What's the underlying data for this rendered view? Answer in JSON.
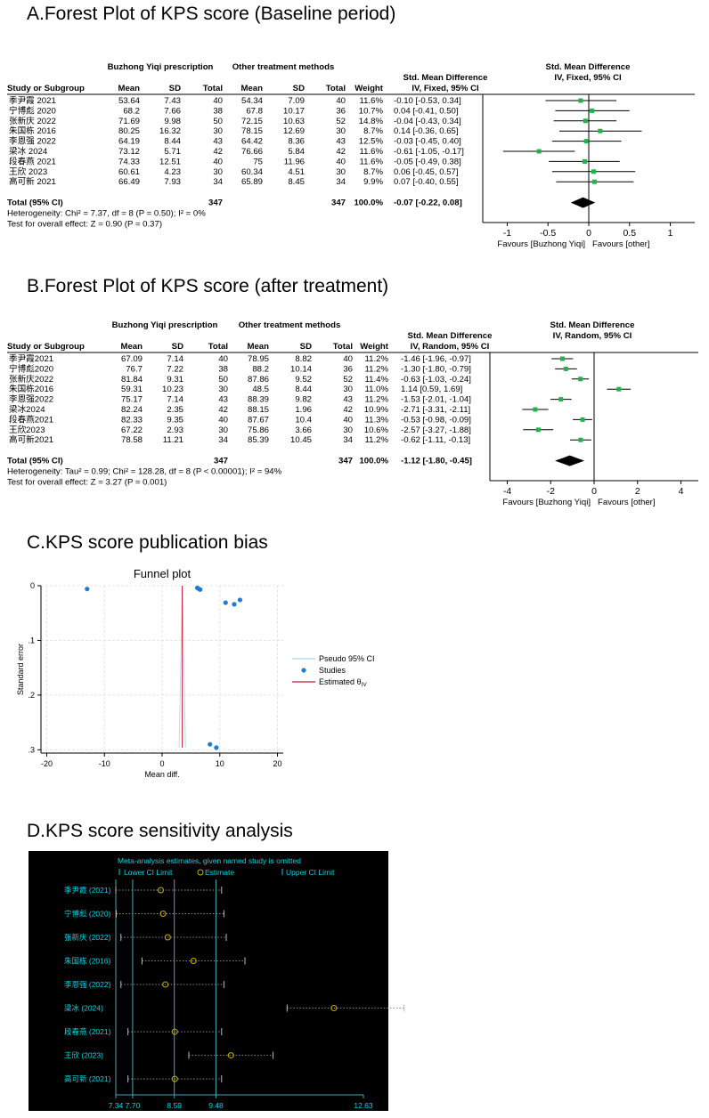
{
  "panels": {
    "A": {
      "title": "A.Forest Plot of KPS score (Baseline period)",
      "headers": {
        "group1": "Buzhong Yiqi prescription",
        "group2": "Other treatment methods",
        "effect": "Std. Mean Difference",
        "effect_method": "IV, Fixed, 95% CI",
        "plot_header": "Std. Mean Difference",
        "plot_method": "IV, Fixed, 95% CI",
        "study": "Study or Subgroup",
        "mean": "Mean",
        "sd": "SD",
        "total": "Total",
        "weight": "Weight"
      },
      "studies": [
        {
          "name": "季尹霞 2021",
          "m1": "53.64",
          "sd1": "7.43",
          "n1": "40",
          "m2": "54.34",
          "sd2": "7.09",
          "n2": "40",
          "weight": "11.6%",
          "ci": "-0.10 [-0.53, 0.34]"
        },
        {
          "name": "宁博彪 2020",
          "m1": "68.2",
          "sd1": "7.66",
          "n1": "38",
          "m2": "67.8",
          "sd2": "10.17",
          "n2": "36",
          "weight": "10.7%",
          "ci": "0.04 [-0.41, 0.50]"
        },
        {
          "name": "张新庆 2022",
          "m1": "71.69",
          "sd1": "9.98",
          "n1": "50",
          "m2": "72.15",
          "sd2": "10.63",
          "n2": "52",
          "weight": "14.8%",
          "ci": "-0.04 [-0.43, 0.34]"
        },
        {
          "name": "朱国栋 2016",
          "m1": "80.25",
          "sd1": "16.32",
          "n1": "30",
          "m2": "78.15",
          "sd2": "12.69",
          "n2": "30",
          "weight": "8.7%",
          "ci": "0.14 [-0.36, 0.65]"
        },
        {
          "name": "李恩强 2022",
          "m1": "64.19",
          "sd1": "8.44",
          "n1": "43",
          "m2": "64.42",
          "sd2": "8.36",
          "n2": "43",
          "weight": "12.5%",
          "ci": "-0.03 [-0.45, 0.40]"
        },
        {
          "name": "梁冰 2024",
          "m1": "73.12",
          "sd1": "5.71",
          "n1": "42",
          "m2": "76.66",
          "sd2": "5.84",
          "n2": "42",
          "weight": "11.6%",
          "ci": "-0.61 [-1.05, -0.17]"
        },
        {
          "name": "段春燕 2021",
          "m1": "74.33",
          "sd1": "12.51",
          "n1": "40",
          "m2": "75",
          "sd2": "11.96",
          "n2": "40",
          "weight": "11.6%",
          "ci": "-0.05 [-0.49, 0.38]"
        },
        {
          "name": "王欣 2023",
          "m1": "60.61",
          "sd1": "4.23",
          "n1": "30",
          "m2": "60.34",
          "sd2": "4.51",
          "n2": "30",
          "weight": "8.7%",
          "ci": "0.06 [-0.45, 0.57]"
        },
        {
          "name": "高可新 2021",
          "m1": "66.49",
          "sd1": "7.93",
          "n1": "34",
          "m2": "65.89",
          "sd2": "8.45",
          "n2": "34",
          "weight": "9.9%",
          "ci": "0.07 [-0.40, 0.55]"
        }
      ],
      "total": {
        "label": "Total (95% CI)",
        "n1": "347",
        "n2": "347",
        "weight": "100.0%",
        "ci": "-0.07 [-0.22, 0.08]"
      },
      "heterogeneity": "Heterogeneity: Chi² = 7.37, df = 8 (P = 0.50); I² = 0%",
      "overall": "Test for overall effect: Z = 0.90 (P = 0.37)",
      "favours_left": "Favours [Buzhong Yiqi]",
      "favours_right": "Favours [other]",
      "axis_ticks": [
        "-1",
        "-0.5",
        "0",
        "0.5",
        "1"
      ]
    },
    "B": {
      "title": "B.Forest Plot of KPS score (after treatment)",
      "headers": {
        "group1": "Buzhong Yiqi prescription",
        "group2": "Other treatment methods",
        "effect": "Std. Mean Difference",
        "effect_method": "IV, Random, 95% CI",
        "plot_header": "Std. Mean Difference",
        "plot_method": "IV, Random, 95% CI",
        "study": "Study or Subgroup",
        "mean": "Mean",
        "sd": "SD",
        "total": "Total",
        "weight": "Weight"
      },
      "studies": [
        {
          "name": "季尹霞2021",
          "m1": "67.09",
          "sd1": "7.14",
          "n1": "40",
          "m2": "78.95",
          "sd2": "8.82",
          "n2": "40",
          "weight": "11.2%",
          "ci": "-1.46 [-1.96, -0.97]"
        },
        {
          "name": "宁博彪2020",
          "m1": "76.7",
          "sd1": "7.22",
          "n1": "38",
          "m2": "88.2",
          "sd2": "10.14",
          "n2": "36",
          "weight": "11.2%",
          "ci": "-1.30 [-1.80, -0.79]"
        },
        {
          "name": "张新庆2022",
          "m1": "81.84",
          "sd1": "9.31",
          "n1": "50",
          "m2": "87.86",
          "sd2": "9.52",
          "n2": "52",
          "weight": "11.4%",
          "ci": "-0.63 [-1.03, -0.24]"
        },
        {
          "name": "朱国栋2016",
          "m1": "59.31",
          "sd1": "10.23",
          "n1": "30",
          "m2": "48.5",
          "sd2": "8.44",
          "n2": "30",
          "weight": "11.0%",
          "ci": "1.14 [0.59, 1.69]"
        },
        {
          "name": "李恩强2022",
          "m1": "75.17",
          "sd1": "7.14",
          "n1": "43",
          "m2": "88.39",
          "sd2": "9.82",
          "n2": "43",
          "weight": "11.2%",
          "ci": "-1.53 [-2.01, -1.04]"
        },
        {
          "name": "梁冰2024",
          "m1": "82.24",
          "sd1": "2.35",
          "n1": "42",
          "m2": "88.15",
          "sd2": "1.96",
          "n2": "42",
          "weight": "10.9%",
          "ci": "-2.71 [-3.31, -2.11]"
        },
        {
          "name": "段春燕2021",
          "m1": "82.33",
          "sd1": "9.35",
          "n1": "40",
          "m2": "87.67",
          "sd2": "10.4",
          "n2": "40",
          "weight": "11.3%",
          "ci": "-0.53 [-0.98, -0.09]"
        },
        {
          "name": "王欣2023",
          "m1": "67.22",
          "sd1": "2.93",
          "n1": "30",
          "m2": "75.86",
          "sd2": "3.66",
          "n2": "30",
          "weight": "10.6%",
          "ci": "-2.57 [-3.27, -1.88]"
        },
        {
          "name": "高可新2021",
          "m1": "78.58",
          "sd1": "11.21",
          "n1": "34",
          "m2": "85.39",
          "sd2": "10.45",
          "n2": "34",
          "weight": "11.2%",
          "ci": "-0.62 [-1.11, -0.13]"
        }
      ],
      "total": {
        "label": "Total (95% CI)",
        "n1": "347",
        "n2": "347",
        "weight": "100.0%",
        "ci": "-1.12 [-1.80, -0.45]"
      },
      "heterogeneity": "Heterogeneity: Tau² = 0.99; Chi² = 128.28, df = 8 (P < 0.00001); I² = 94%",
      "overall": "Test for overall effect: Z = 3.27 (P = 0.001)",
      "favours_left": "Favours [Buzhong Yiqi]",
      "favours_right": "Favours [other]",
      "axis_ticks": [
        "-4",
        "-2",
        "0",
        "2",
        "4"
      ]
    },
    "C": {
      "title": "C.KPS score publication bias",
      "plot_title": "Funnel plot",
      "ylabel": "Standard error",
      "xlabel": "Mean diff.",
      "xticks": [
        "-20",
        "-10",
        "0",
        "10",
        "20"
      ],
      "yticks": [
        "0",
        ".1",
        ".2",
        ".3"
      ],
      "legend": {
        "ci": "Pseudo 95% CI",
        "studies": "Studies",
        "estimated": "Estimated θ",
        "estimated_sub": "IV"
      }
    },
    "D": {
      "title": "D.KPS score  sensitivity analysis",
      "header": "Meta-analysis estimates, given named study is omitted",
      "legend": {
        "lower": "Lower CI Limit",
        "estimate": "Estimate",
        "upper": "Upper CI Limit"
      },
      "axis_ticks": [
        "7.34",
        "7.70",
        "8.59",
        "9.48",
        "12.63"
      ]
    }
  },
  "chart_data": [
    {
      "type": "forest",
      "panel": "A",
      "x": [
        -0.1,
        0.04,
        -0.04,
        0.14,
        -0.03,
        -0.61,
        -0.05,
        0.06,
        0.07
      ],
      "lower": [
        -0.53,
        -0.41,
        -0.43,
        -0.36,
        -0.45,
        -1.05,
        -0.49,
        -0.45,
        -0.4
      ],
      "upper": [
        0.34,
        0.5,
        0.34,
        0.65,
        0.4,
        -0.17,
        0.38,
        0.57,
        0.55
      ],
      "pooled": {
        "estimate": -0.07,
        "lower": -0.22,
        "upper": 0.08
      },
      "xlim": [
        -1.3,
        1.3
      ],
      "tick_values": [
        -1,
        -0.5,
        0,
        0.5,
        1
      ]
    },
    {
      "type": "forest",
      "panel": "B",
      "x": [
        -1.46,
        -1.3,
        -0.63,
        1.14,
        -1.53,
        -2.71,
        -0.53,
        -2.57,
        -0.62
      ],
      "lower": [
        -1.96,
        -1.8,
        -1.03,
        0.59,
        -2.01,
        -3.31,
        -0.98,
        -3.27,
        -1.11
      ],
      "upper": [
        -0.97,
        -0.79,
        -0.24,
        1.69,
        -1.04,
        -2.11,
        -0.09,
        -1.88,
        -0.13
      ],
      "pooled": {
        "estimate": -1.12,
        "lower": -1.8,
        "upper": -0.45
      },
      "xlim": [
        -4.8,
        4.8
      ],
      "tick_values": [
        -4,
        -2,
        0,
        2,
        4
      ]
    },
    {
      "type": "scatter",
      "panel": "C",
      "points": [
        {
          "x": -13,
          "y": 0.006
        },
        {
          "x": 6.1,
          "y": 0.004
        },
        {
          "x": 6.4,
          "y": 0.006
        },
        {
          "x": 6.6,
          "y": 0.007
        },
        {
          "x": 11,
          "y": 0.031
        },
        {
          "x": 12.5,
          "y": 0.034
        },
        {
          "x": 13.5,
          "y": 0.026
        },
        {
          "x": 8.3,
          "y": 0.29
        },
        {
          "x": 9.4,
          "y": 0.296
        }
      ],
      "estimate": 3.5,
      "xlim": [
        -21,
        21
      ],
      "ylim": [
        0,
        0.306
      ],
      "y_inverted": true,
      "grid": true,
      "legend_position": "right"
    },
    {
      "type": "sensitivity",
      "panel": "D",
      "labels": [
        "季尹霞 (2021)",
        "宁博彪 (2020)",
        "张新庆 (2022)",
        "朱国栋 (2016)",
        "李恩强 (2022)",
        "梁冰 (2024)",
        "段春燕 (2021)",
        "王欣 (2023)",
        "高可新 (2021)"
      ],
      "estimate": [
        8.3,
        8.35,
        8.45,
        9.0,
        8.4,
        12.0,
        8.6,
        9.8,
        8.6
      ],
      "lower": [
        7.34,
        7.35,
        7.45,
        7.9,
        7.45,
        11.0,
        7.6,
        8.9,
        7.6
      ],
      "upper": [
        9.6,
        9.65,
        9.7,
        10.1,
        9.65,
        13.5,
        9.6,
        10.7,
        9.6
      ],
      "xlim": [
        7.34,
        12.63
      ],
      "tick_values": [
        7.34,
        7.7,
        8.59,
        9.48,
        12.63
      ],
      "colors": {
        "background": "#000000",
        "text": "#00d6e8",
        "estimate": "#c8b400",
        "line": "#4aa6b8"
      }
    }
  ]
}
